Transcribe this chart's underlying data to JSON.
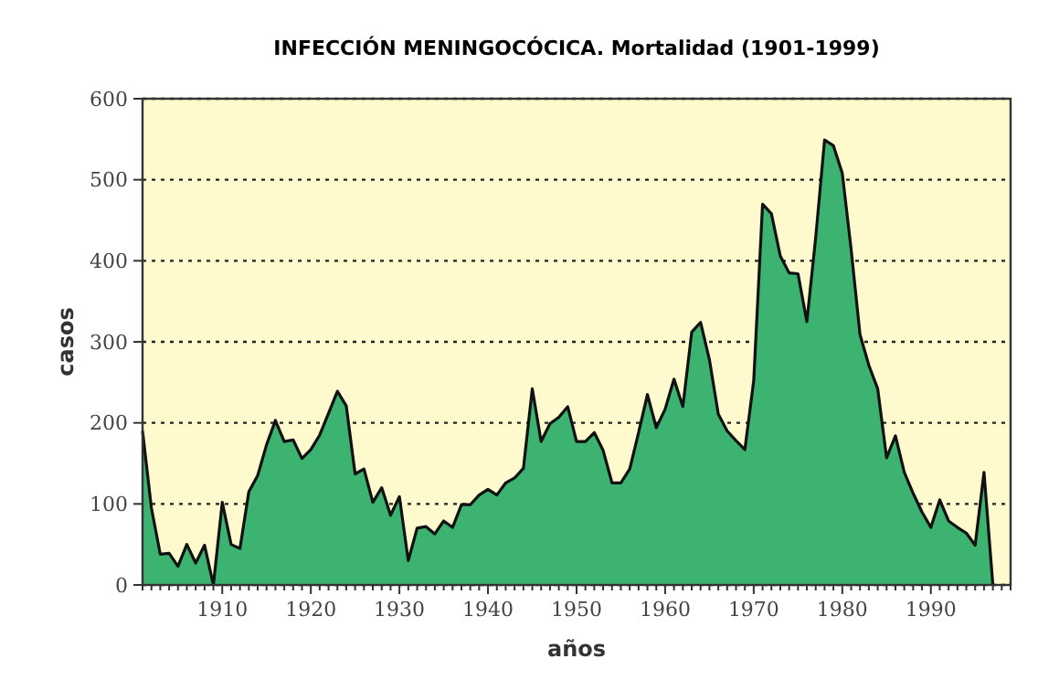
{
  "chart_data": {
    "type": "area",
    "title": "INFECCIÓN MENINGOCÓCICA. Mortalidad (1901-1999)",
    "xlabel": "años",
    "ylabel": "casos",
    "x": [
      1901,
      1902,
      1903,
      1904,
      1905,
      1906,
      1907,
      1908,
      1909,
      1910,
      1911,
      1912,
      1913,
      1914,
      1915,
      1916,
      1917,
      1918,
      1919,
      1920,
      1921,
      1922,
      1923,
      1924,
      1925,
      1926,
      1927,
      1928,
      1929,
      1930,
      1931,
      1932,
      1933,
      1934,
      1935,
      1936,
      1937,
      1938,
      1939,
      1940,
      1941,
      1942,
      1943,
      1944,
      1945,
      1946,
      1947,
      1948,
      1949,
      1950,
      1951,
      1952,
      1953,
      1954,
      1955,
      1956,
      1957,
      1958,
      1959,
      1960,
      1961,
      1962,
      1963,
      1964,
      1965,
      1966,
      1967,
      1968,
      1969,
      1970,
      1971,
      1972,
      1973,
      1974,
      1975,
      1976,
      1977,
      1978,
      1979,
      1980,
      1981,
      1982,
      1983,
      1984,
      1985,
      1986,
      1987,
      1988,
      1989,
      1990,
      1991,
      1992,
      1993,
      1994,
      1995,
      1996,
      1997
    ],
    "series": [
      {
        "color": "#3cb371",
        "values": [
          190,
          95,
          38,
          39,
          23,
          50,
          27,
          49,
          0,
          102,
          50,
          45,
          115,
          135,
          173,
          203,
          177,
          179,
          156,
          167,
          185,
          212,
          239,
          221,
          137,
          143,
          102,
          120,
          86,
          109,
          30,
          70,
          72,
          63,
          79,
          71,
          99,
          99,
          111,
          118,
          111,
          126,
          132,
          144,
          242,
          177,
          199,
          207,
          220,
          177,
          177,
          188,
          166,
          126,
          126,
          143,
          188,
          235,
          194,
          217,
          254,
          220,
          312,
          324,
          278,
          211,
          190,
          178,
          167,
          252,
          470,
          458,
          406,
          385,
          384,
          325,
          429,
          549,
          542,
          508,
          414,
          309,
          271,
          242,
          157,
          184,
          139,
          113,
          90,
          71,
          105,
          79,
          71,
          64,
          49,
          139,
          0
        ]
      }
    ],
    "xlim": [
      1901,
      1999
    ],
    "xticks": [
      {
        "value": 1901,
        "label": null
      },
      {
        "value": 1902,
        "label": null
      },
      {
        "value": 1903,
        "label": null
      },
      {
        "value": 1904,
        "label": null
      },
      {
        "value": 1905,
        "label": null
      },
      {
        "value": 1906,
        "label": null
      },
      {
        "value": 1907,
        "label": null
      },
      {
        "value": 1908,
        "label": null
      },
      {
        "value": 1909,
        "label": null
      },
      1910,
      {
        "value": 1911,
        "label": null
      },
      {
        "value": 1912,
        "label": null
      },
      {
        "value": 1913,
        "label": null
      },
      {
        "value": 1914,
        "label": null
      },
      {
        "value": 1915,
        "label": null
      },
      {
        "value": 1916,
        "label": null
      },
      {
        "value": 1917,
        "label": null
      },
      {
        "value": 1918,
        "label": null
      },
      {
        "value": 1919,
        "label": null
      },
      1920,
      {
        "value": 1921,
        "label": null
      },
      {
        "value": 1922,
        "label": null
      },
      {
        "value": 1923,
        "label": null
      },
      {
        "value": 1924,
        "label": null
      },
      {
        "value": 1925,
        "label": null
      },
      {
        "value": 1926,
        "label": null
      },
      {
        "value": 1927,
        "label": null
      },
      {
        "value": 1928,
        "label": null
      },
      {
        "value": 1929,
        "label": null
      },
      1930,
      {
        "value": 1931,
        "label": null
      },
      {
        "value": 1932,
        "label": null
      },
      {
        "value": 1933,
        "label": null
      },
      {
        "value": 1934,
        "label": null
      },
      {
        "value": 1935,
        "label": null
      },
      {
        "value": 1936,
        "label": null
      },
      {
        "value": 1937,
        "label": null
      },
      {
        "value": 1938,
        "label": null
      },
      {
        "value": 1939,
        "label": null
      },
      1940,
      {
        "value": 1941,
        "label": null
      },
      {
        "value": 1942,
        "label": null
      },
      {
        "value": 1943,
        "label": null
      },
      {
        "value": 1944,
        "label": null
      },
      {
        "value": 1945,
        "label": null
      },
      {
        "value": 1946,
        "label": null
      },
      {
        "value": 1947,
        "label": null
      },
      {
        "value": 1948,
        "label": null
      },
      {
        "value": 1949,
        "label": null
      },
      1950,
      {
        "value": 1951,
        "label": null
      },
      {
        "value": 1952,
        "label": null
      },
      {
        "value": 1953,
        "label": null
      },
      {
        "value": 1954,
        "label": null
      },
      {
        "value": 1955,
        "label": null
      },
      {
        "value": 1956,
        "label": null
      },
      {
        "value": 1957,
        "label": null
      },
      {
        "value": 1958,
        "label": null
      },
      {
        "value": 1959,
        "label": null
      },
      1960,
      {
        "value": 1961,
        "label": null
      },
      {
        "value": 1962,
        "label": null
      },
      {
        "value": 1963,
        "label": null
      },
      {
        "value": 1964,
        "label": null
      },
      {
        "value": 1965,
        "label": null
      },
      {
        "value": 1966,
        "label": null
      },
      {
        "value": 1967,
        "label": null
      },
      {
        "value": 1968,
        "label": null
      },
      {
        "value": 1969,
        "label": null
      },
      1970,
      {
        "value": 1971,
        "label": null
      },
      {
        "value": 1972,
        "label": null
      },
      {
        "value": 1973,
        "label": null
      },
      {
        "value": 1974,
        "label": null
      },
      {
        "value": 1975,
        "label": null
      },
      {
        "value": 1976,
        "label": null
      },
      {
        "value": 1977,
        "label": null
      },
      {
        "value": 1978,
        "label": null
      },
      {
        "value": 1979,
        "label": null
      },
      1980,
      {
        "value": 1981,
        "label": null
      },
      {
        "value": 1982,
        "label": null
      },
      {
        "value": 1983,
        "label": null
      },
      {
        "value": 1984,
        "label": null
      },
      {
        "value": 1985,
        "label": null
      },
      {
        "value": 1986,
        "label": null
      },
      {
        "value": 1987,
        "label": null
      },
      {
        "value": 1988,
        "label": null
      },
      {
        "value": 1989,
        "label": null
      },
      1990,
      {
        "value": 1991,
        "label": null
      },
      {
        "value": 1992,
        "label": null
      },
      {
        "value": 1993,
        "label": null
      },
      {
        "value": 1994,
        "label": null
      },
      {
        "value": 1995,
        "label": null
      },
      {
        "value": 1996,
        "label": null
      },
      {
        "value": 1997,
        "label": null
      },
      {
        "value": 1998,
        "label": null
      },
      {
        "value": 1999,
        "label": null
      }
    ],
    "ylim": [
      0,
      600
    ],
    "yticks": [
      0,
      100,
      200,
      300,
      400,
      500,
      600
    ],
    "grid": "y"
  }
}
